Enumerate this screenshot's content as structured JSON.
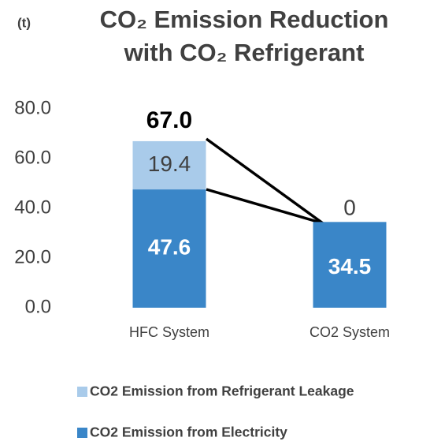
{
  "chart_data": {
    "type": "stacked_bar",
    "title": "CO₂ Emission Reduction with CO₂ Refrigerant",
    "y_unit_label": "(t)",
    "categories": [
      "HFC System",
      "CO2 System"
    ],
    "series": [
      {
        "name": "CO2 Emission from Electricity",
        "color": "#3a86c8",
        "values": [
          47.6,
          34.5
        ]
      },
      {
        "name": "CO2 Emission from Refrigerant Leakage",
        "color": "#a9cbea",
        "values": [
          19.4,
          0
        ]
      }
    ],
    "total_label": "67.0",
    "ylim": [
      0,
      80
    ],
    "yticks": [
      {
        "value": 0,
        "label": "0.0"
      },
      {
        "value": 20,
        "label": "20.0"
      },
      {
        "value": 40,
        "label": "40.0"
      },
      {
        "value": 60,
        "label": "60.0"
      },
      {
        "value": 80,
        "label": "80.0"
      }
    ],
    "grid": false
  }
}
